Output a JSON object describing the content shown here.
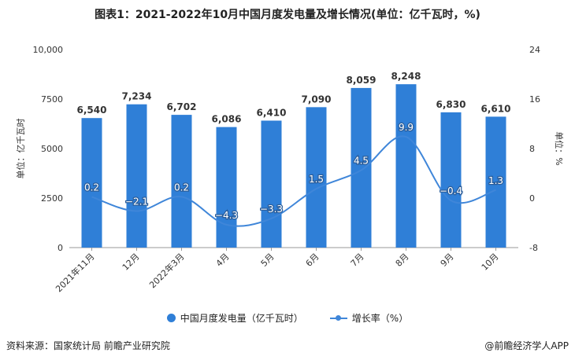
{
  "title": "图表1：2021-2022年10月中国月度发电量及增长情况(单位：亿千瓦时，%)",
  "source": "资料来源：国家统计局 前瞻产业研究院",
  "credit": "@前瞻经济学人APP",
  "colors": {
    "bar": "#2f7fd7",
    "line": "#3f86d9",
    "axis": "#999999",
    "text": "#333333"
  },
  "chart_data": {
    "type": "bar",
    "categories": [
      "2021年11月",
      "12月",
      "2022年3月",
      "4月",
      "5月",
      "6月",
      "7月",
      "8月",
      "9月",
      "10月"
    ],
    "series": [
      {
        "name": "中国月度发电量（亿千瓦时）",
        "type": "bar",
        "axis": "left",
        "values": [
          6540,
          7234,
          6702,
          6086,
          6410,
          7090,
          8059,
          8248,
          6830,
          6610
        ],
        "labels": [
          "6,540",
          "7,234",
          "6,702",
          "6,086",
          "6,410",
          "7,090",
          "8,059",
          "8,248",
          "6,830",
          "6,610"
        ]
      },
      {
        "name": "增长率（%）",
        "type": "line",
        "axis": "right",
        "values": [
          0.2,
          -2.1,
          0.2,
          -4.3,
          -3.3,
          1.5,
          4.5,
          9.9,
          -0.4,
          1.3
        ],
        "labels": [
          "0.2",
          "−2.1",
          "0.2",
          "−4.3",
          "−3.3",
          "1.5",
          "4.5",
          "9.9",
          "−0.4",
          "1.3"
        ]
      }
    ],
    "y_left": {
      "label": "单位：亿千瓦时",
      "ylim": [
        0,
        10000
      ],
      "ticks": [
        0,
        2500,
        5000,
        7500,
        10000
      ],
      "tick_labels": [
        "0",
        "2500",
        "5000",
        "7500",
        "10,000"
      ]
    },
    "y_right": {
      "label": "单位：%",
      "ylim": [
        -8,
        24
      ],
      "ticks": [
        -8,
        0,
        8,
        16,
        24
      ],
      "tick_labels": [
        "-8",
        "0",
        "8",
        "16",
        "24"
      ]
    },
    "grid": false,
    "legend": "bottom-center"
  }
}
